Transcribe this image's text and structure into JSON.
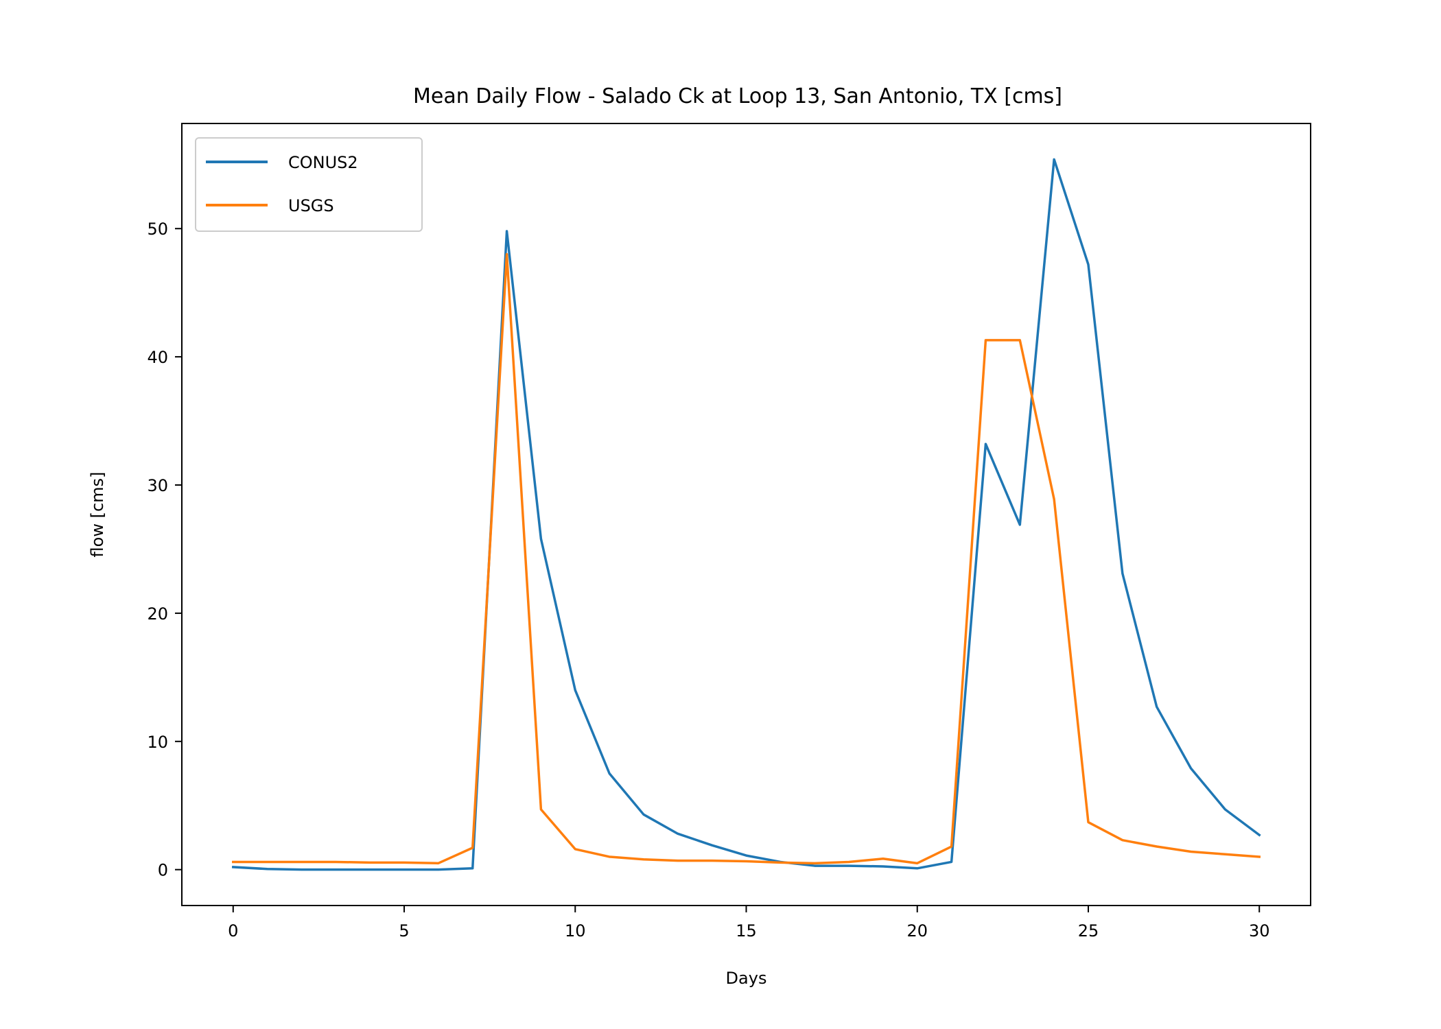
{
  "chart_data": {
    "type": "line",
    "title": "Mean Daily Flow - Salado Ck at Loop 13, San Antonio, TX [cms]",
    "xlabel": "Days",
    "ylabel": "flow [cms]",
    "xlim": [
      -1.5,
      31.5
    ],
    "ylim": [
      -2.8,
      58.2
    ],
    "xticks": [
      0,
      5,
      10,
      15,
      20,
      25,
      30
    ],
    "yticks": [
      0,
      10,
      20,
      30,
      40,
      50
    ],
    "grid": false,
    "legend_position": "top-left",
    "x": [
      0,
      1,
      2,
      3,
      4,
      5,
      6,
      7,
      8,
      9,
      10,
      11,
      12,
      13,
      14,
      15,
      16,
      17,
      18,
      19,
      20,
      21,
      22,
      23,
      24,
      25,
      26,
      27,
      28,
      29,
      30
    ],
    "series": [
      {
        "name": "CONUS2",
        "color": "#1f77b4",
        "values": [
          0.2,
          0.05,
          0,
          0,
          0,
          0,
          0,
          0.1,
          49.8,
          25.8,
          14.0,
          7.5,
          4.3,
          2.8,
          1.9,
          1.1,
          0.6,
          0.3,
          0.3,
          0.25,
          0.1,
          0.6,
          33.2,
          26.9,
          55.4,
          47.2,
          23.1,
          12.7,
          7.9,
          4.7,
          2.7
        ]
      },
      {
        "name": "USGS",
        "color": "#ff7f0e",
        "values": [
          0.6,
          0.6,
          0.6,
          0.6,
          0.55,
          0.55,
          0.5,
          1.7,
          48.0,
          4.7,
          1.6,
          1.0,
          0.8,
          0.7,
          0.7,
          0.65,
          0.55,
          0.5,
          0.6,
          0.85,
          0.5,
          1.8,
          41.3,
          41.3,
          28.9,
          3.7,
          2.3,
          1.8,
          1.4,
          1.2,
          1.0
        ]
      }
    ]
  }
}
